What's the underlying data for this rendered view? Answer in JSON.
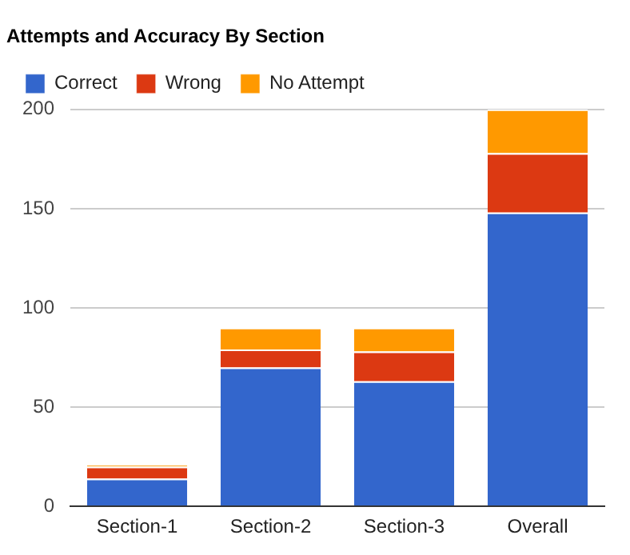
{
  "chart_data": {
    "type": "bar",
    "title": "Attempts and Accuracy By Section",
    "categories": [
      "Section-1",
      "Section-2",
      "Section-3",
      "Overall"
    ],
    "stacked": true,
    "series": [
      {
        "name": "Correct",
        "color": "#3366cc",
        "values": [
          14,
          70,
          63,
          148
        ]
      },
      {
        "name": "Wrong",
        "color": "#dc3912",
        "values": [
          6,
          9,
          15,
          30
        ]
      },
      {
        "name": "No Attempt",
        "color": "#ff9900",
        "values": [
          1,
          11,
          12,
          22
        ]
      }
    ],
    "ylim": [
      0,
      200
    ],
    "yticks": [
      0,
      50,
      100,
      150,
      200
    ],
    "grid": "y",
    "legend": "top left"
  }
}
